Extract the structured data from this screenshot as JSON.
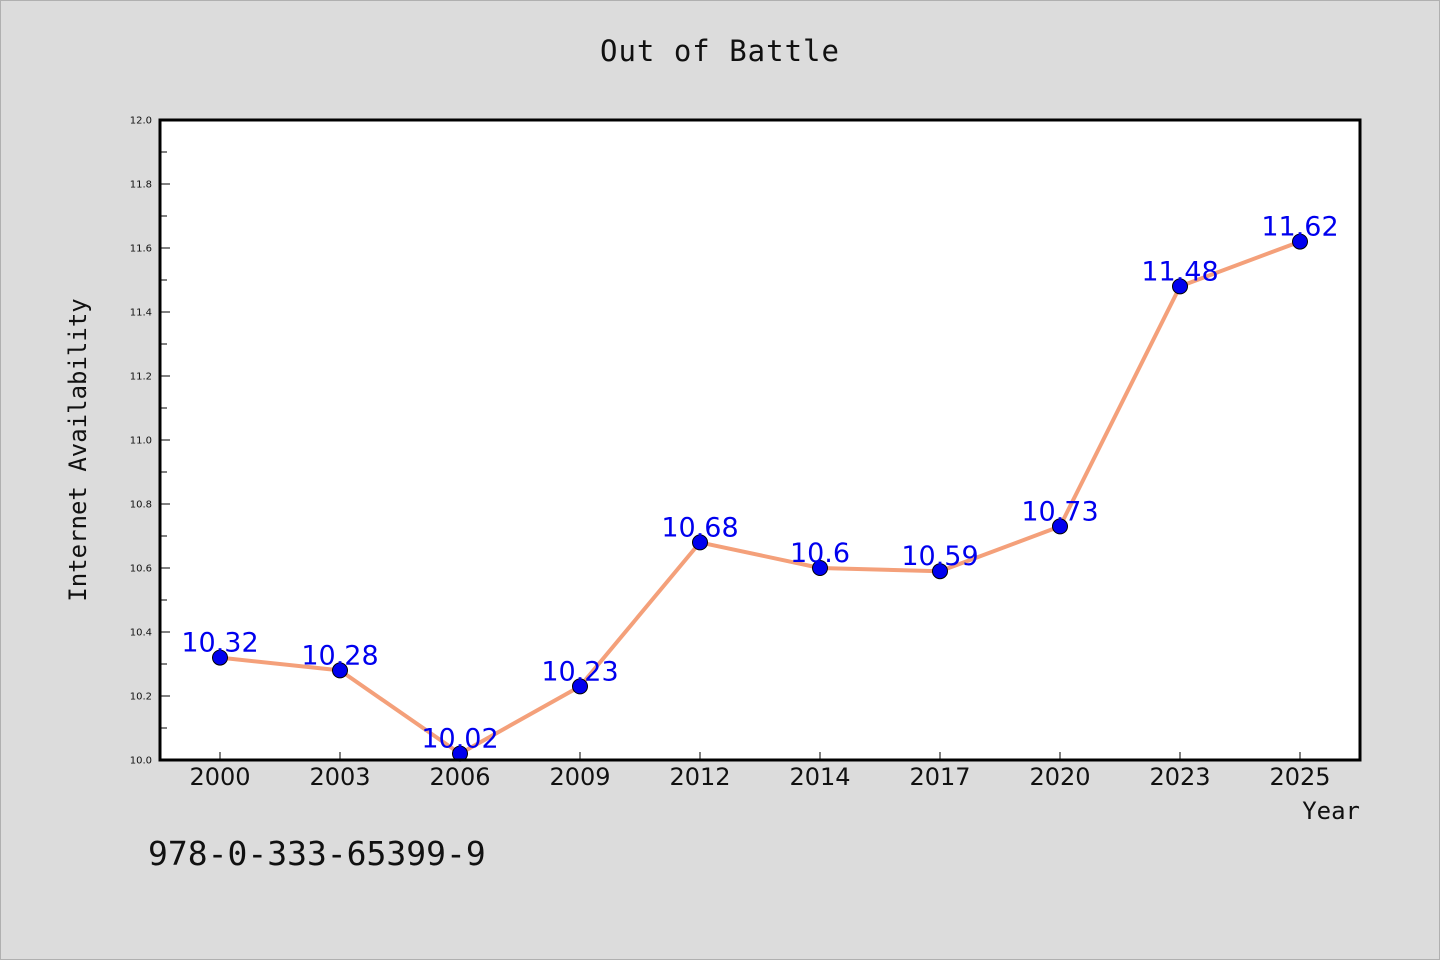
{
  "chart_data": {
    "type": "line",
    "title": "Out of Battle",
    "xlabel": "Year",
    "ylabel": "Internet Availability",
    "categories": [
      "2000",
      "2003",
      "2006",
      "2009",
      "2012",
      "2014",
      "2017",
      "2020",
      "2023",
      "2025"
    ],
    "series": [
      {
        "values": [
          10.32,
          10.28,
          10.02,
          10.23,
          10.68,
          10.6,
          10.59,
          10.73,
          11.48,
          11.62
        ],
        "line_color": "#f4a07a",
        "marker_color": "#0000ee",
        "label_color": "#0000ee"
      }
    ],
    "data_labels": [
      "10.32",
      "10.28",
      "10.02",
      "10.23",
      "10.68",
      "10.6",
      "10.59",
      "10.73",
      "11.48",
      "11.62"
    ],
    "ylim": [
      10.0,
      12.0
    ],
    "yticks": [
      "10.0",
      "10.2",
      "10.4",
      "10.6",
      "10.8",
      "11.0",
      "11.2",
      "11.4",
      "11.6",
      "11.8",
      "12.0"
    ],
    "grid": false,
    "legend": "none",
    "background_color": "#dcdcdc",
    "plot_background": "#ffffff"
  },
  "footer": {
    "isbn": "978-0-333-65399-9"
  }
}
